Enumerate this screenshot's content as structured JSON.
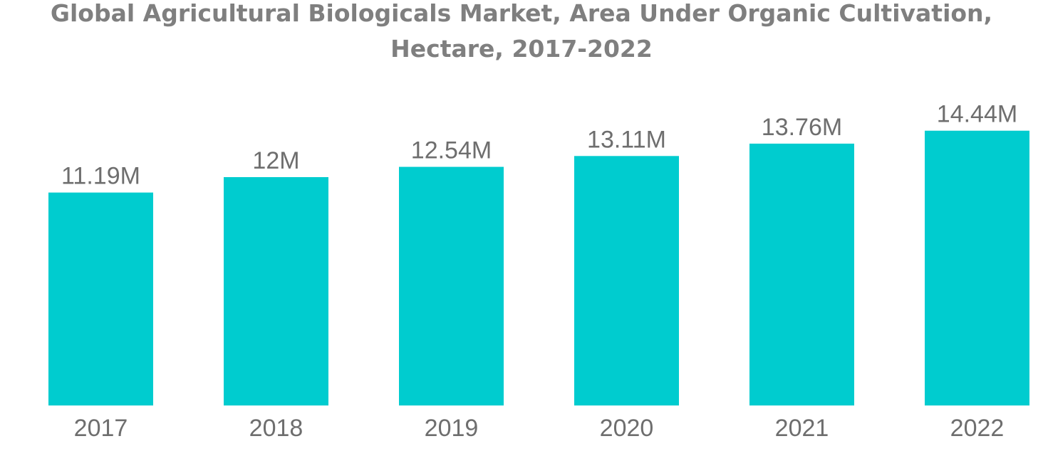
{
  "chart_data": {
    "type": "bar",
    "title": "Global Agricultural Biologicals Market, Area Under Organic Cultivation, Hectare, 2017-2022",
    "xlabel": "",
    "ylabel": "",
    "categories": [
      "2017",
      "2018",
      "2019",
      "2020",
      "2021",
      "2022"
    ],
    "values": [
      11.19,
      12,
      12.54,
      13.11,
      13.76,
      14.44
    ],
    "data_labels": [
      "11.19M",
      "12M",
      "12.54M",
      "13.11M",
      "13.76M",
      "14.44M"
    ],
    "ylim": [
      0,
      15
    ],
    "grid": false,
    "legend": "none",
    "bar_color": "#00cccf"
  }
}
